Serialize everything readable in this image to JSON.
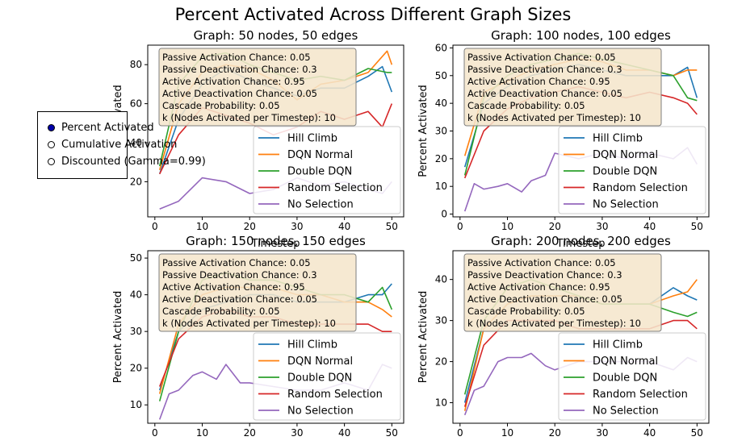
{
  "title": "Percent Activated Across Different Graph Sizes",
  "radio": {
    "options": [
      "Percent Activated",
      "Cumulative Activation",
      "Discounted (Gamma=0.99)"
    ],
    "selected": 0
  },
  "param_box": [
    "Passive Activation Chance: 0.05",
    "Passive Deactivation Chance: 0.3",
    "Active Activation Chance: 0.95",
    "Active Deactivation Chance: 0.05",
    "Cascade Probability: 0.05",
    "k (Nodes Activated per Timestep): 10"
  ],
  "colors": {
    "Hill Climb": "#1f77b4",
    "DQN Normal": "#ff7f0e",
    "Double DQN": "#2ca02c",
    "Random Selection": "#d62728",
    "No Selection": "#9467bd",
    "box_face": "#f5e6cc",
    "box_edge": "#7f7f7f"
  },
  "chart_data": [
    {
      "type": "line",
      "title": "Graph: 50 nodes, 50 edges",
      "xlabel": "Timestep",
      "ylabel": "Percent Activated",
      "xlim": [
        -1.5,
        52.5
      ],
      "ylim": [
        2,
        90
      ],
      "xticks": [
        0,
        10,
        20,
        30,
        40,
        50
      ],
      "yticks": [
        20,
        40,
        60,
        80
      ],
      "series": [
        {
          "name": "Hill Climb",
          "x": [
            1,
            5,
            10,
            15,
            20,
            25,
            30,
            35,
            40,
            45,
            48,
            50
          ],
          "y": [
            24,
            52,
            70,
            78,
            72,
            68,
            64,
            68,
            68,
            74,
            79,
            66
          ]
        },
        {
          "name": "DQN Normal",
          "x": [
            1,
            5,
            10,
            15,
            20,
            25,
            30,
            35,
            40,
            45,
            49,
            50
          ],
          "y": [
            26,
            60,
            76,
            80,
            78,
            72,
            62,
            70,
            72,
            76,
            87,
            80
          ]
        },
        {
          "name": "Double DQN",
          "x": [
            1,
            5,
            10,
            15,
            20,
            25,
            30,
            35,
            40,
            45,
            49,
            50
          ],
          "y": [
            28,
            70,
            84,
            86,
            80,
            76,
            72,
            74,
            72,
            78,
            76,
            76
          ]
        },
        {
          "name": "Random Selection",
          "x": [
            1,
            5,
            10,
            15,
            20,
            25,
            30,
            35,
            40,
            45,
            48,
            50
          ],
          "y": [
            24,
            44,
            58,
            54,
            50,
            44,
            48,
            56,
            52,
            56,
            48,
            60
          ]
        },
        {
          "name": "No Selection",
          "x": [
            1,
            5,
            10,
            15,
            20,
            25,
            30,
            35,
            40,
            45,
            48,
            50
          ],
          "y": [
            6,
            10,
            22,
            20,
            14,
            16,
            22,
            18,
            20,
            16,
            14,
            20
          ]
        }
      ]
    },
    {
      "type": "line",
      "title": "Graph: 100 nodes, 100 edges",
      "xlabel": "Timestep",
      "ylabel": "Percent Activated",
      "xlim": [
        -1.5,
        52.5
      ],
      "ylim": [
        -1,
        61
      ],
      "xticks": [
        0,
        10,
        20,
        30,
        40,
        50
      ],
      "yticks": [
        0,
        10,
        20,
        30,
        40,
        50,
        60
      ],
      "series": [
        {
          "name": "Hill Climb",
          "x": [
            1,
            5,
            10,
            15,
            20,
            25,
            30,
            35,
            40,
            45,
            48,
            50
          ],
          "y": [
            17,
            40,
            46,
            50,
            52,
            54,
            52,
            50,
            50,
            50,
            53,
            42
          ]
        },
        {
          "name": "DQN Normal",
          "x": [
            1,
            5,
            10,
            15,
            20,
            25,
            30,
            35,
            40,
            45,
            48,
            50
          ],
          "y": [
            21,
            44,
            48,
            52,
            54,
            56,
            55,
            52,
            52,
            50,
            52,
            52
          ]
        },
        {
          "name": "Double DQN",
          "x": [
            1,
            5,
            10,
            15,
            20,
            25,
            30,
            35,
            40,
            45,
            48,
            50
          ],
          "y": [
            14,
            42,
            50,
            54,
            56,
            58,
            56,
            54,
            52,
            50,
            42,
            41
          ]
        },
        {
          "name": "Random Selection",
          "x": [
            1,
            5,
            10,
            15,
            20,
            25,
            30,
            35,
            40,
            45,
            48,
            50
          ],
          "y": [
            13,
            30,
            38,
            42,
            44,
            46,
            44,
            42,
            44,
            42,
            40,
            36
          ]
        },
        {
          "name": "No Selection",
          "x": [
            1,
            3,
            5,
            8,
            10,
            13,
            15,
            18,
            20,
            25,
            30,
            35,
            40,
            45,
            48,
            50
          ],
          "y": [
            1,
            11,
            9,
            10,
            11,
            8,
            12,
            14,
            22,
            20,
            22,
            20,
            22,
            20,
            24,
            18
          ]
        }
      ]
    },
    {
      "type": "line",
      "title": "Graph: 150 nodes, 150 edges",
      "xlabel": "",
      "ylabel": "Percent Activated",
      "xlim": [
        -1.5,
        52.5
      ],
      "ylim": [
        5,
        52
      ],
      "xticks": [
        0,
        10,
        20,
        30,
        40,
        50
      ],
      "yticks": [
        10,
        20,
        30,
        40,
        50
      ],
      "series": [
        {
          "name": "Hill Climb",
          "x": [
            1,
            5,
            10,
            15,
            20,
            25,
            30,
            35,
            40,
            45,
            48,
            50
          ],
          "y": [
            14,
            30,
            36,
            38,
            40,
            40,
            38,
            38,
            38,
            40,
            40,
            43
          ]
        },
        {
          "name": "DQN Normal",
          "x": [
            1,
            5,
            10,
            15,
            20,
            25,
            30,
            35,
            40,
            45,
            48,
            50
          ],
          "y": [
            13,
            32,
            40,
            42,
            42,
            42,
            40,
            40,
            38,
            38,
            36,
            34
          ]
        },
        {
          "name": "Double DQN",
          "x": [
            1,
            5,
            10,
            15,
            20,
            25,
            30,
            35,
            40,
            45,
            48,
            50
          ],
          "y": [
            11,
            30,
            44,
            46,
            44,
            44,
            42,
            40,
            40,
            38,
            42,
            36
          ]
        },
        {
          "name": "Random Selection",
          "x": [
            1,
            5,
            10,
            15,
            20,
            25,
            30,
            35,
            40,
            45,
            48,
            50
          ],
          "y": [
            15,
            28,
            34,
            36,
            34,
            34,
            32,
            32,
            32,
            32,
            30,
            30
          ]
        },
        {
          "name": "No Selection",
          "x": [
            1,
            3,
            5,
            8,
            10,
            13,
            15,
            18,
            20,
            25,
            30,
            35,
            40,
            45,
            48,
            50
          ],
          "y": [
            6,
            13,
            14,
            18,
            19,
            17,
            21,
            16,
            16,
            15,
            14,
            14,
            16,
            14,
            21,
            20
          ]
        }
      ]
    },
    {
      "type": "line",
      "title": "Graph: 200 nodes, 200 edges",
      "xlabel": "",
      "ylabel": "Percent Activated",
      "xlim": [
        -1.5,
        52.5
      ],
      "ylim": [
        5,
        47
      ],
      "xticks": [
        0,
        10,
        20,
        30,
        40,
        50
      ],
      "yticks": [
        10,
        20,
        30,
        40
      ],
      "series": [
        {
          "name": "Hill Climb",
          "x": [
            1,
            5,
            10,
            15,
            20,
            25,
            30,
            35,
            40,
            45,
            48,
            50
          ],
          "y": [
            10,
            28,
            34,
            36,
            36,
            36,
            34,
            34,
            34,
            38,
            36,
            35
          ]
        },
        {
          "name": "DQN Normal",
          "x": [
            1,
            5,
            10,
            15,
            20,
            25,
            30,
            35,
            40,
            45,
            48,
            50
          ],
          "y": [
            8,
            28,
            34,
            36,
            36,
            36,
            34,
            34,
            34,
            36,
            37,
            40
          ]
        },
        {
          "name": "Double DQN",
          "x": [
            1,
            5,
            10,
            15,
            20,
            25,
            30,
            35,
            40,
            45,
            48,
            50
          ],
          "y": [
            12,
            30,
            38,
            40,
            38,
            36,
            34,
            34,
            34,
            32,
            31,
            32
          ]
        },
        {
          "name": "Random Selection",
          "x": [
            1,
            5,
            10,
            15,
            20,
            25,
            30,
            35,
            40,
            45,
            48,
            50
          ],
          "y": [
            9,
            24,
            30,
            30,
            30,
            28,
            28,
            28,
            28,
            30,
            30,
            28
          ]
        },
        {
          "name": "No Selection",
          "x": [
            1,
            3,
            5,
            8,
            10,
            13,
            15,
            18,
            20,
            25,
            30,
            35,
            40,
            45,
            48,
            50
          ],
          "y": [
            7,
            13,
            14,
            20,
            21,
            21,
            22,
            19,
            18,
            20,
            20,
            20,
            20,
            18,
            21,
            20
          ]
        }
      ]
    }
  ]
}
